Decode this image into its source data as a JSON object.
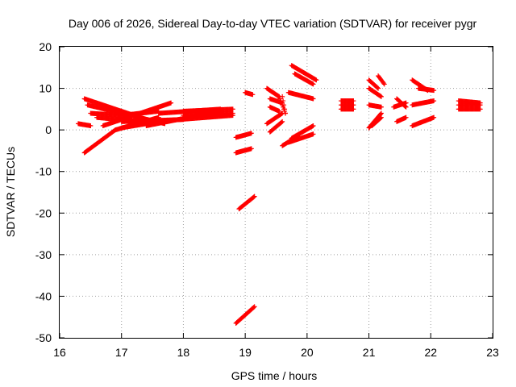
{
  "chart_data": {
    "type": "scatter",
    "title": "Day 006 of 2026, Sidereal Day-to-day VTEC variation (SDTVAR) for receiver pygr",
    "xlabel": "GPS time / hours",
    "ylabel": "SDTVAR / TECUs",
    "xlim": [
      16,
      23
    ],
    "ylim": [
      -50,
      20
    ],
    "xticks": [
      "16",
      "17",
      "18",
      "19",
      "20",
      "21",
      "22",
      "23"
    ],
    "yticks": [
      "20",
      "10",
      "0",
      "-10",
      "-20",
      "-30",
      "-40",
      "-50"
    ],
    "grid": true,
    "marker": "plus",
    "color": "#ff0000",
    "tracks": [
      {
        "t0": 16.4,
        "t1": 17.4,
        "y0": 7.5,
        "y1": 2.5
      },
      {
        "t0": 16.45,
        "t1": 17.7,
        "y0": 6.0,
        "y1": 1.5
      },
      {
        "t0": 16.4,
        "t1": 16.9,
        "y0": -5.5,
        "y1": 0.0
      },
      {
        "t0": 16.9,
        "t1": 17.6,
        "y0": 0.0,
        "y1": 3.0
      },
      {
        "t0": 16.3,
        "t1": 16.5,
        "y0": 1.5,
        "y1": 1.0
      },
      {
        "t0": 16.5,
        "t1": 17.0,
        "y0": 4.0,
        "y1": 3.5
      },
      {
        "t0": 17.0,
        "t1": 17.6,
        "y0": 3.5,
        "y1": 4.5
      },
      {
        "t0": 16.6,
        "t1": 17.3,
        "y0": 3.0,
        "y1": 2.0
      },
      {
        "t0": 16.7,
        "t1": 17.8,
        "y0": 1.0,
        "y1": 6.5
      },
      {
        "t0": 17.0,
        "t1": 17.6,
        "y0": 0.5,
        "y1": 2.0
      },
      {
        "t0": 17.0,
        "t1": 18.0,
        "y0": 2.0,
        "y1": 2.5
      },
      {
        "t0": 17.4,
        "t1": 18.6,
        "y0": 1.0,
        "y1": 4.5
      },
      {
        "t0": 17.5,
        "t1": 18.8,
        "y0": 2.0,
        "y1": 3.5
      },
      {
        "t0": 17.6,
        "t1": 18.6,
        "y0": 4.0,
        "y1": 5.0
      },
      {
        "t0": 18.0,
        "t1": 18.8,
        "y0": 4.5,
        "y1": 5.0
      },
      {
        "t0": 18.0,
        "t1": 18.8,
        "y0": 3.5,
        "y1": 4.0
      },
      {
        "t0": 18.85,
        "t1": 19.1,
        "y0": -1.8,
        "y1": -0.8
      },
      {
        "t0": 18.85,
        "t1": 19.1,
        "y0": -5.5,
        "y1": -4.5
      },
      {
        "t0": 18.9,
        "t1": 19.15,
        "y0": -19.0,
        "y1": -16.0
      },
      {
        "t0": 18.85,
        "t1": 19.15,
        "y0": -46.5,
        "y1": -42.5
      },
      {
        "t0": 19.0,
        "t1": 19.12,
        "y0": 9.0,
        "y1": 8.5
      },
      {
        "t0": 19.35,
        "t1": 19.55,
        "y0": 10.0,
        "y1": 8.0
      },
      {
        "t0": 19.4,
        "t1": 19.6,
        "y0": 7.5,
        "y1": 6.5
      },
      {
        "t0": 19.4,
        "t1": 19.55,
        "y0": 5.5,
        "y1": 4.5
      },
      {
        "t0": 19.35,
        "t1": 19.6,
        "y0": 1.5,
        "y1": 4.0
      },
      {
        "t0": 19.4,
        "t1": 19.6,
        "y0": -0.5,
        "y1": 2.0
      },
      {
        "t0": 19.55,
        "t1": 19.65,
        "y0": 8.0,
        "y1": 4.0
      },
      {
        "t0": 19.6,
        "t1": 19.65,
        "y0": 8.0,
        "y1": 4.0
      },
      {
        "t0": 19.75,
        "t1": 20.15,
        "y0": 15.5,
        "y1": 12.0
      },
      {
        "t0": 19.8,
        "t1": 20.1,
        "y0": 13.5,
        "y1": 11.0
      },
      {
        "t0": 19.7,
        "t1": 20.1,
        "y0": 9.0,
        "y1": 7.5
      },
      {
        "t0": 19.75,
        "t1": 20.1,
        "y0": -2.0,
        "y1": 1.0
      },
      {
        "t0": 19.7,
        "t1": 20.1,
        "y0": -3.0,
        "y1": -1.0
      },
      {
        "t0": 19.6,
        "t1": 19.85,
        "y0": -3.8,
        "y1": -1.5
      },
      {
        "t0": 20.55,
        "t1": 20.75,
        "y0": 7.0,
        "y1": 7.0
      },
      {
        "t0": 20.55,
        "t1": 20.75,
        "y0": 6.0,
        "y1": 6.0
      },
      {
        "t0": 20.55,
        "t1": 20.75,
        "y0": 5.0,
        "y1": 5.0
      },
      {
        "t0": 21.0,
        "t1": 21.15,
        "y0": 12.0,
        "y1": 10.0
      },
      {
        "t0": 21.0,
        "t1": 21.2,
        "y0": 10.0,
        "y1": 8.0
      },
      {
        "t0": 21.0,
        "t1": 21.2,
        "y0": 6.0,
        "y1": 5.5
      },
      {
        "t0": 21.0,
        "t1": 21.2,
        "y0": 0.5,
        "y1": 4.0
      },
      {
        "t0": 21.05,
        "t1": 21.2,
        "y0": 1.0,
        "y1": 3.0
      },
      {
        "t0": 21.15,
        "t1": 21.25,
        "y0": 13.0,
        "y1": 11.0
      },
      {
        "t0": 21.45,
        "t1": 21.6,
        "y0": 7.5,
        "y1": 5.5
      },
      {
        "t0": 21.4,
        "t1": 21.6,
        "y0": 5.5,
        "y1": 6.5
      },
      {
        "t0": 21.45,
        "t1": 21.6,
        "y0": 2.0,
        "y1": 3.0
      },
      {
        "t0": 21.7,
        "t1": 21.95,
        "y0": 12.0,
        "y1": 9.5
      },
      {
        "t0": 21.8,
        "t1": 22.05,
        "y0": 10.0,
        "y1": 9.5
      },
      {
        "t0": 21.7,
        "t1": 22.05,
        "y0": 6.0,
        "y1": 7.0
      },
      {
        "t0": 21.7,
        "t1": 22.05,
        "y0": 1.0,
        "y1": 3.0
      },
      {
        "t0": 22.45,
        "t1": 22.8,
        "y0": 7.0,
        "y1": 6.5
      },
      {
        "t0": 22.45,
        "t1": 22.8,
        "y0": 6.0,
        "y1": 6.0
      },
      {
        "t0": 22.45,
        "t1": 22.8,
        "y0": 5.0,
        "y1": 5.0
      }
    ]
  }
}
